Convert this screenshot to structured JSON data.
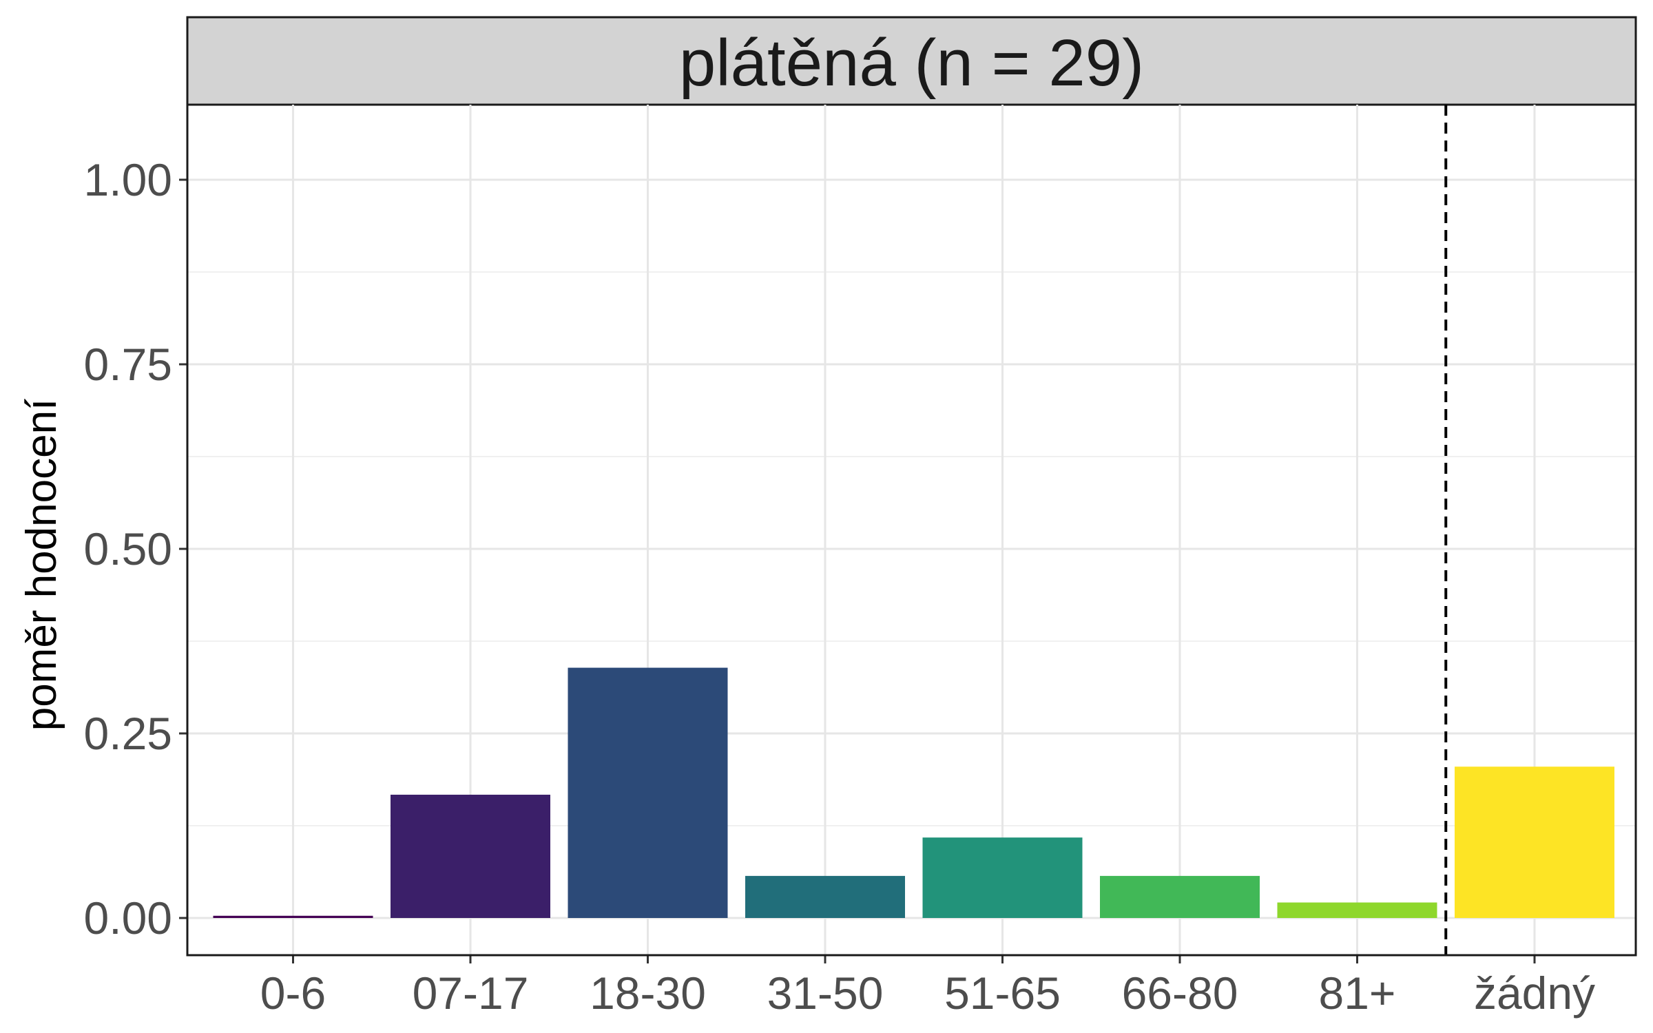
{
  "chart_data": {
    "type": "bar",
    "facet_label": "plátěná (n = 29)",
    "ylabel": "poměr hodnocení",
    "xlabel": "",
    "categories": [
      "0-6",
      "07-17",
      "18-30",
      "31-50",
      "51-65",
      "66-80",
      "81+",
      "žádný"
    ],
    "values": [
      0.003,
      0.167,
      0.339,
      0.057,
      0.109,
      0.057,
      0.021,
      0.205
    ],
    "colors": [
      "#440154",
      "#3B1F69",
      "#2C4A78",
      "#216E7A",
      "#22937A",
      "#41B857",
      "#8ED72C",
      "#FDE425"
    ],
    "ylim": [
      -0.05,
      1.1
    ],
    "yticks": [
      "0.00",
      "0.25",
      "0.50",
      "0.75",
      "1.00"
    ],
    "reference_line": {
      "style": "dashed",
      "between": [
        "81+",
        "žádný"
      ]
    },
    "grid": true,
    "legend": "none"
  }
}
